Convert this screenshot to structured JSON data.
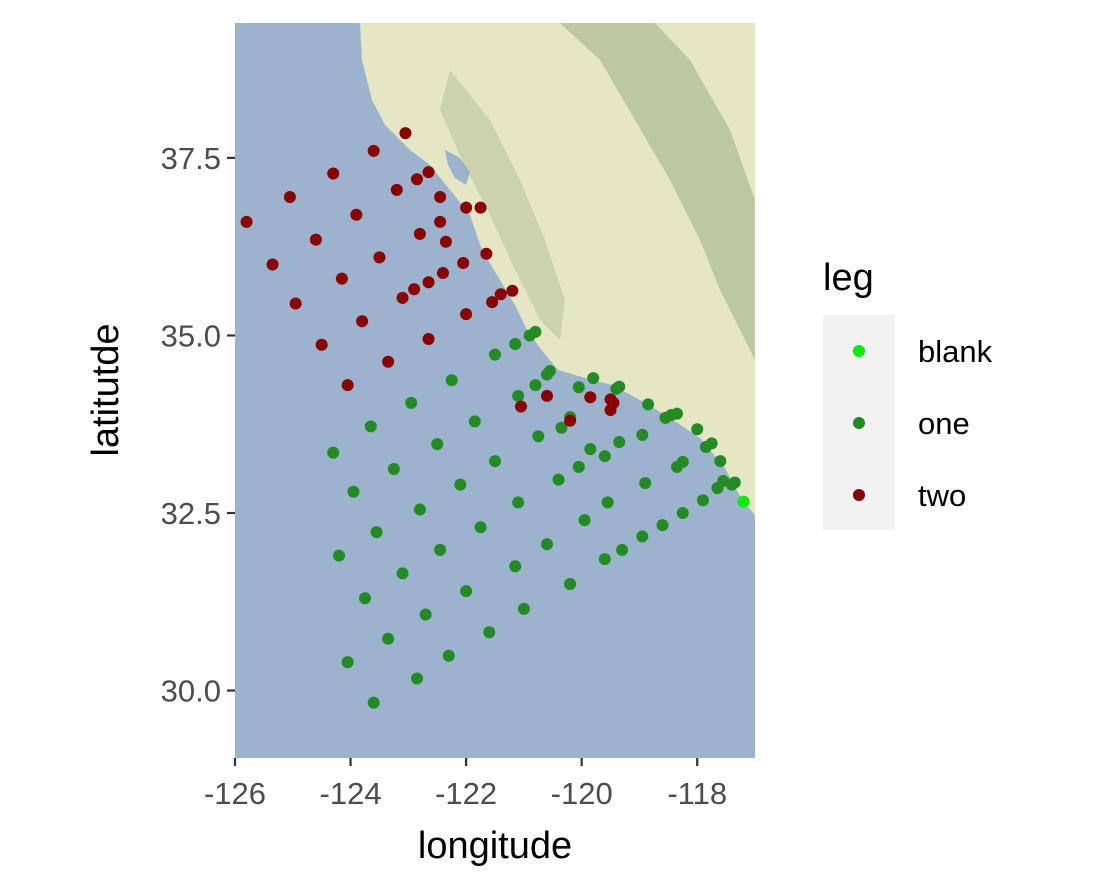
{
  "chart_data": {
    "type": "scatter",
    "xlabel": "longitude",
    "ylabel": "latitutde",
    "xlim": [
      -126,
      -117
    ],
    "ylim": [
      29.05,
      39.4
    ],
    "x_ticks": [
      -126,
      -124,
      -122,
      -120,
      -118
    ],
    "x_tick_labels": [
      "-126",
      "-124",
      "-122",
      "-120",
      "-118"
    ],
    "y_ticks": [
      30.0,
      32.5,
      35.0,
      37.5
    ],
    "y_tick_labels": [
      "30.0",
      "32.5",
      "35.0",
      "37.5"
    ],
    "background": "terrain map of the California coast",
    "grid": false,
    "legend": {
      "title": "leg",
      "position": "right"
    },
    "series": [
      {
        "name": "blank",
        "color": "#00ee00",
        "points": [
          [
            -117.2,
            32.66
          ]
        ]
      },
      {
        "name": "one",
        "color": "#228b22",
        "points": [
          [
            -121.5,
            34.73
          ],
          [
            -121.15,
            34.88
          ],
          [
            -120.9,
            35.0
          ],
          [
            -120.8,
            35.05
          ],
          [
            -120.6,
            34.45
          ],
          [
            -120.55,
            34.5
          ],
          [
            -120.8,
            34.3
          ],
          [
            -121.1,
            34.15
          ],
          [
            -120.75,
            33.58
          ],
          [
            -120.35,
            33.7
          ],
          [
            -120.2,
            33.85
          ],
          [
            -120.05,
            34.27
          ],
          [
            -119.8,
            34.4
          ],
          [
            -119.4,
            34.25
          ],
          [
            -119.35,
            34.28
          ],
          [
            -119.85,
            33.4
          ],
          [
            -120.05,
            33.15
          ],
          [
            -119.6,
            33.3
          ],
          [
            -119.35,
            33.5
          ],
          [
            -118.95,
            33.6
          ],
          [
            -118.85,
            34.03
          ],
          [
            -118.55,
            33.84
          ],
          [
            -118.45,
            33.88
          ],
          [
            -118.35,
            33.9
          ],
          [
            -118.0,
            33.68
          ],
          [
            -117.75,
            33.48
          ],
          [
            -117.85,
            33.43
          ],
          [
            -117.6,
            33.23
          ],
          [
            -118.35,
            33.15
          ],
          [
            -118.25,
            33.22
          ],
          [
            -117.55,
            32.95
          ],
          [
            -117.4,
            32.9
          ],
          [
            -117.35,
            32.93
          ],
          [
            -117.65,
            32.85
          ],
          [
            -117.9,
            32.68
          ],
          [
            -118.25,
            32.5
          ],
          [
            -118.6,
            32.33
          ],
          [
            -118.95,
            32.17
          ],
          [
            -119.3,
            31.98
          ],
          [
            -119.6,
            31.85
          ],
          [
            -119.55,
            32.65
          ],
          [
            -119.95,
            32.4
          ],
          [
            -120.4,
            32.97
          ],
          [
            -118.9,
            32.92
          ],
          [
            -121.1,
            32.65
          ],
          [
            -121.5,
            33.23
          ],
          [
            -121.85,
            33.79
          ],
          [
            -122.25,
            34.37
          ],
          [
            -122.95,
            34.05
          ],
          [
            -123.65,
            33.72
          ],
          [
            -124.3,
            33.35
          ],
          [
            -123.95,
            32.8
          ],
          [
            -123.25,
            33.12
          ],
          [
            -122.5,
            33.47
          ],
          [
            -122.1,
            32.9
          ],
          [
            -122.8,
            32.55
          ],
          [
            -123.55,
            32.23
          ],
          [
            -124.2,
            31.9
          ],
          [
            -122.45,
            31.98
          ],
          [
            -121.75,
            32.3
          ],
          [
            -121.15,
            31.75
          ],
          [
            -120.6,
            32.06
          ],
          [
            -120.2,
            31.5
          ],
          [
            -121.0,
            31.15
          ],
          [
            -122.0,
            31.4
          ],
          [
            -123.1,
            31.65
          ],
          [
            -123.75,
            31.3
          ],
          [
            -122.7,
            31.07
          ],
          [
            -121.6,
            30.82
          ],
          [
            -122.3,
            30.49
          ],
          [
            -123.35,
            30.73
          ],
          [
            -124.05,
            30.4
          ],
          [
            -122.85,
            30.17
          ],
          [
            -123.6,
            29.83
          ]
        ]
      },
      {
        "name": "two",
        "color": "#8b0000",
        "points": [
          [
            -123.05,
            37.85
          ],
          [
            -123.6,
            37.6
          ],
          [
            -124.3,
            37.28
          ],
          [
            -122.65,
            37.3
          ],
          [
            -122.85,
            37.2
          ],
          [
            -123.2,
            37.05
          ],
          [
            -125.05,
            36.95
          ],
          [
            -122.45,
            36.95
          ],
          [
            -122.0,
            36.8
          ],
          [
            -121.75,
            36.8
          ],
          [
            -123.9,
            36.7
          ],
          [
            -122.45,
            36.6
          ],
          [
            -125.8,
            36.6
          ],
          [
            -122.8,
            36.43
          ],
          [
            -122.35,
            36.32
          ],
          [
            -124.6,
            36.35
          ],
          [
            -121.65,
            36.15
          ],
          [
            -123.5,
            36.1
          ],
          [
            -122.05,
            36.02
          ],
          [
            -125.35,
            36.0
          ],
          [
            -122.4,
            35.88
          ],
          [
            -122.65,
            35.75
          ],
          [
            -122.9,
            35.65
          ],
          [
            -124.15,
            35.8
          ],
          [
            -123.1,
            35.53
          ],
          [
            -121.4,
            35.58
          ],
          [
            -121.2,
            35.63
          ],
          [
            -121.55,
            35.47
          ],
          [
            -124.95,
            35.45
          ],
          [
            -122.0,
            35.3
          ],
          [
            -123.8,
            35.2
          ],
          [
            -122.65,
            34.95
          ],
          [
            -124.5,
            34.87
          ],
          [
            -123.35,
            34.63
          ],
          [
            -124.05,
            34.3
          ],
          [
            -121.05,
            34.0
          ],
          [
            -120.6,
            34.15
          ],
          [
            -119.85,
            34.13
          ],
          [
            -119.5,
            34.1
          ],
          [
            -119.45,
            34.05
          ],
          [
            -119.5,
            33.95
          ],
          [
            -120.2,
            33.8
          ]
        ]
      }
    ]
  }
}
